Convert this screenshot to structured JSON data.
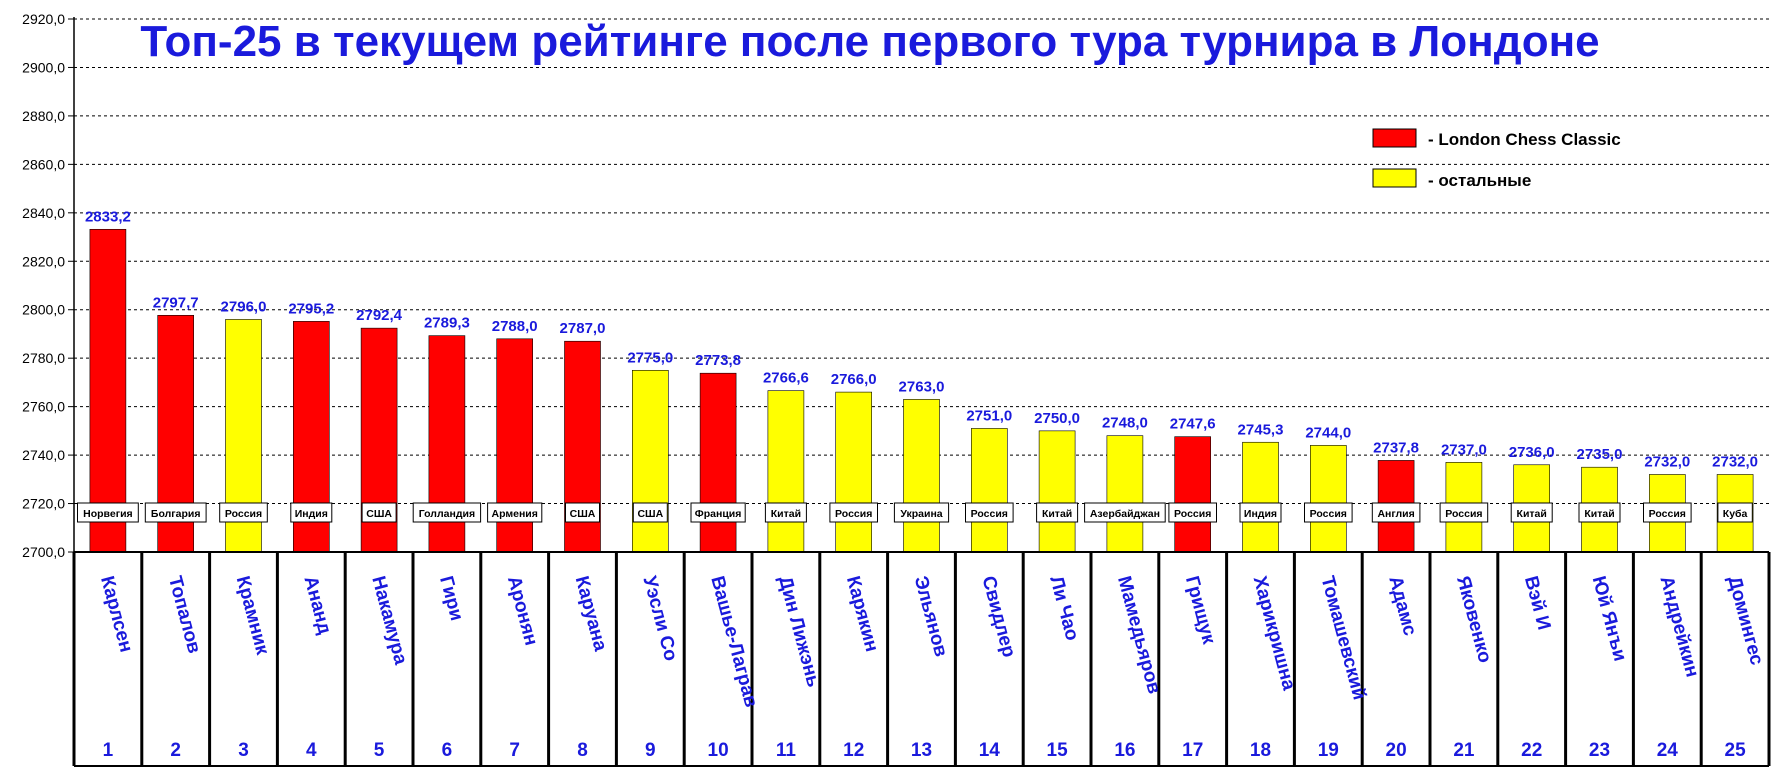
{
  "colors": {
    "london": "#ff0000",
    "others": "#ffff00",
    "text_accent": "#1a1adc"
  },
  "chart_data": {
    "type": "bar",
    "title": "Топ-25 в текущем рейтинге после первого тура турнира в Лондоне",
    "ylim": [
      2700,
      2920
    ],
    "ytick_step": 20,
    "ytick_labels": [
      "2700,0",
      "2720,0",
      "2740,0",
      "2760,0",
      "2780,0",
      "2800,0",
      "2820,0",
      "2840,0",
      "2860,0",
      "2880,0",
      "2900,0",
      "2920,0"
    ],
    "grid": true,
    "legend_position": "top-right",
    "legend": [
      {
        "key": "london",
        "label": "- London Chess Classic"
      },
      {
        "key": "others",
        "label": "- остальные"
      }
    ],
    "ranks": [
      "1",
      "2",
      "3",
      "4",
      "5",
      "6",
      "7",
      "8",
      "9",
      "10",
      "11",
      "12",
      "13",
      "14",
      "15",
      "16",
      "17",
      "18",
      "19",
      "20",
      "21",
      "22",
      "23",
      "24",
      "25"
    ],
    "categories": [
      "Карлсен",
      "Топалов",
      "Крамник",
      "Ананд",
      "Накамура",
      "Гири",
      "Аронян",
      "Каруана",
      "Уэсли Со",
      "Вашье-Лаграв",
      "Дин Лижэнь",
      "Карякин",
      "Эльянов",
      "Свидлер",
      "Ли Чао",
      "Мамедьяров",
      "Грищук",
      "Харикришна",
      "Томашевский",
      "Адамс",
      "Яковенко",
      "Вэй И",
      "Юй Янъи",
      "Андрейкин",
      "Домингес"
    ],
    "countries": [
      "Норвегия",
      "Болгария",
      "Россия",
      "Индия",
      "США",
      "Голландия",
      "Армения",
      "США",
      "США",
      "Франция",
      "Китай",
      "Россия",
      "Украина",
      "Россия",
      "Китай",
      "Азербайджан",
      "Россия",
      "Индия",
      "Россия",
      "Англия",
      "Россия",
      "Китай",
      "Китай",
      "Россия",
      "Куба"
    ],
    "values": [
      2833.2,
      2797.7,
      2796.0,
      2795.2,
      2792.4,
      2789.3,
      2788.0,
      2787.0,
      2775.0,
      2773.8,
      2766.6,
      2766.0,
      2763.0,
      2751.0,
      2750.0,
      2748.0,
      2747.6,
      2745.3,
      2744.0,
      2737.8,
      2737.0,
      2736.0,
      2735.0,
      2732.0,
      2732.0
    ],
    "value_labels": [
      "2833,2",
      "2797,7",
      "2796,0",
      "2795,2",
      "2792,4",
      "2789,3",
      "2788,0",
      "2787,0",
      "2775,0",
      "2773,8",
      "2766,6",
      "2766,0",
      "2763,0",
      "2751,0",
      "2750,0",
      "2748,0",
      "2747,6",
      "2745,3",
      "2744,0",
      "2737,8",
      "2737,0",
      "2736,0",
      "2735,0",
      "2732,0",
      "2732,0"
    ],
    "group": [
      "london",
      "london",
      "others",
      "london",
      "london",
      "london",
      "london",
      "london",
      "others",
      "london",
      "others",
      "others",
      "others",
      "others",
      "others",
      "others",
      "london",
      "others",
      "others",
      "london",
      "others",
      "others",
      "others",
      "others",
      "others"
    ]
  }
}
